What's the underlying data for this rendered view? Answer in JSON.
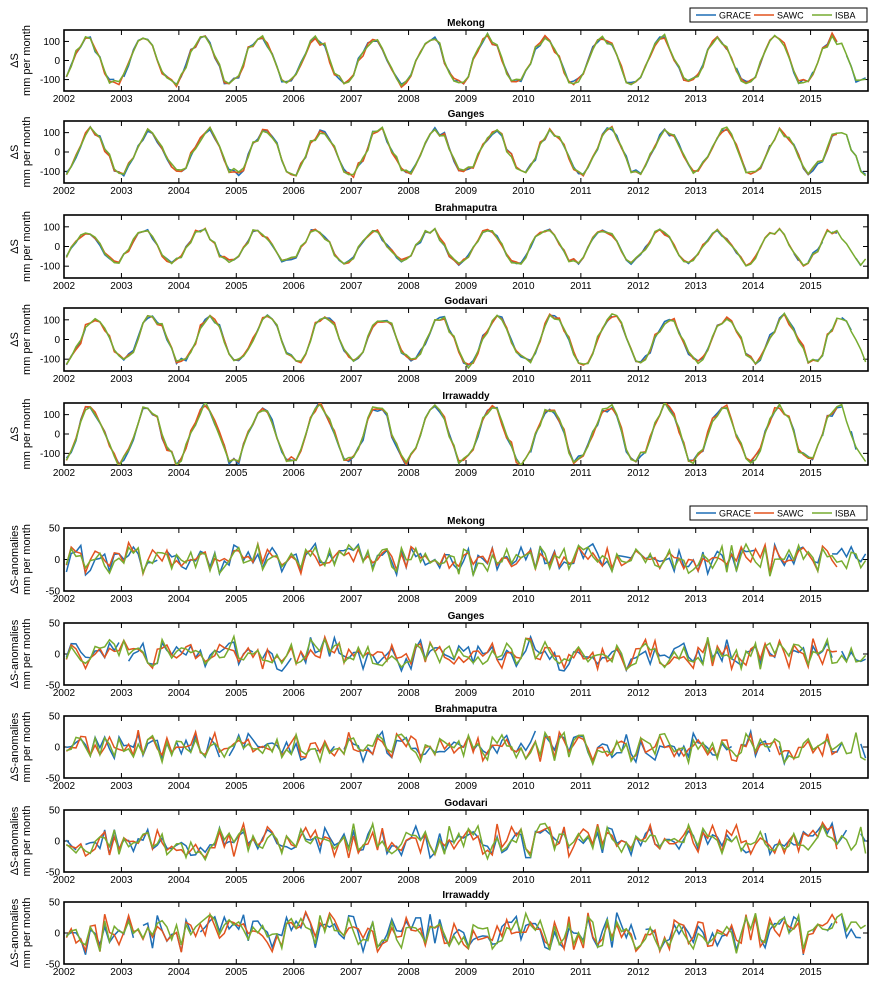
{
  "chart_data": [
    {
      "type": "line",
      "title": "Mekong",
      "ylabel": "ΔS",
      "ylabel2": "mm per month",
      "ylim": [
        -160,
        160
      ],
      "yticks": [
        -100,
        0,
        100
      ],
      "xlim": [
        2002,
        2016
      ],
      "xticks": [
        2002,
        2003,
        2004,
        2005,
        2006,
        2007,
        2008,
        2009,
        2010,
        2011,
        2012,
        2013,
        2014,
        2015
      ],
      "amp": 120,
      "phase": 0.35,
      "seed": 11,
      "legend": [
        "GRACE",
        "SAWC",
        "ISBA"
      ]
    },
    {
      "type": "line",
      "title": "Ganges",
      "ylabel": "ΔS",
      "ylabel2": "mm per month",
      "ylim": [
        -160,
        160
      ],
      "yticks": [
        -100,
        0,
        100
      ],
      "xlim": [
        2002,
        2016
      ],
      "xticks": [
        2002,
        2003,
        2004,
        2005,
        2006,
        2007,
        2008,
        2009,
        2010,
        2011,
        2012,
        2013,
        2014,
        2015
      ],
      "amp": 110,
      "phase": 0.45,
      "seed": 23
    },
    {
      "type": "line",
      "title": "Brahmaputra",
      "ylabel": "ΔS",
      "ylabel2": "mm per month",
      "ylim": [
        -160,
        160
      ],
      "yticks": [
        -100,
        0,
        100
      ],
      "xlim": [
        2002,
        2016
      ],
      "xticks": [
        2002,
        2003,
        2004,
        2005,
        2006,
        2007,
        2008,
        2009,
        2010,
        2011,
        2012,
        2013,
        2014,
        2015
      ],
      "amp": 80,
      "phase": 0.35,
      "seed": 37
    },
    {
      "type": "line",
      "title": "Godavari",
      "ylabel": "ΔS",
      "ylabel2": "mm per month",
      "ylim": [
        -160,
        160
      ],
      "yticks": [
        -100,
        0,
        100
      ],
      "xlim": [
        2002,
        2016
      ],
      "xticks": [
        2002,
        2003,
        2004,
        2005,
        2006,
        2007,
        2008,
        2009,
        2010,
        2011,
        2012,
        2013,
        2014,
        2015
      ],
      "amp": 115,
      "phase": 0.5,
      "seed": 41
    },
    {
      "type": "line",
      "title": "Irrawaddy",
      "ylabel": "ΔS",
      "ylabel2": "mm per month",
      "ylim": [
        -160,
        160
      ],
      "yticks": [
        -100,
        0,
        100
      ],
      "xlim": [
        2002,
        2016
      ],
      "xticks": [
        2002,
        2003,
        2004,
        2005,
        2006,
        2007,
        2008,
        2009,
        2010,
        2011,
        2012,
        2013,
        2014,
        2015
      ],
      "amp": 140,
      "phase": 0.42,
      "seed": 53
    },
    {
      "type": "line",
      "title": "Mekong",
      "ylabel": "ΔS-anomalies",
      "ylabel2": "mm per month",
      "ylim": [
        -50,
        50
      ],
      "yticks": [
        -50,
        0,
        50
      ],
      "xlim": [
        2002,
        2016
      ],
      "xticks": [
        2002,
        2003,
        2004,
        2005,
        2006,
        2007,
        2008,
        2009,
        2010,
        2011,
        2012,
        2013,
        2014,
        2015
      ],
      "amp": 22,
      "seed": 61,
      "legend": [
        "GRACE",
        "SAWC",
        "ISBA"
      ]
    },
    {
      "type": "line",
      "title": "Ganges",
      "ylabel": "ΔS-anomalies",
      "ylabel2": "mm per month",
      "ylim": [
        -50,
        50
      ],
      "yticks": [
        -50,
        0,
        50
      ],
      "xlim": [
        2002,
        2016
      ],
      "xticks": [
        2002,
        2003,
        2004,
        2005,
        2006,
        2007,
        2008,
        2009,
        2010,
        2011,
        2012,
        2013,
        2014,
        2015
      ],
      "amp": 24,
      "seed": 73
    },
    {
      "type": "line",
      "title": "Brahmaputra",
      "ylabel": "ΔS-anomalies",
      "ylabel2": "mm per month",
      "ylim": [
        -50,
        50
      ],
      "yticks": [
        -50,
        0,
        50
      ],
      "xlim": [
        2002,
        2016
      ],
      "xticks": [
        2002,
        2003,
        2004,
        2005,
        2006,
        2007,
        2008,
        2009,
        2010,
        2011,
        2012,
        2013,
        2014,
        2015
      ],
      "amp": 22,
      "seed": 89
    },
    {
      "type": "line",
      "title": "Godavari",
      "ylabel": "ΔS-anomalies",
      "ylabel2": "mm per month",
      "ylim": [
        -50,
        50
      ],
      "yticks": [
        -50,
        0,
        50
      ],
      "xlim": [
        2002,
        2016
      ],
      "xticks": [
        2002,
        2003,
        2004,
        2005,
        2006,
        2007,
        2008,
        2009,
        2010,
        2011,
        2012,
        2013,
        2014,
        2015
      ],
      "amp": 24,
      "seed": 97
    },
    {
      "type": "line",
      "title": "Irrawaddy",
      "ylabel": "ΔS-anomalies",
      "ylabel2": "mm per month",
      "ylim": [
        -50,
        50
      ],
      "yticks": [
        -50,
        0,
        50
      ],
      "xlim": [
        2002,
        2016
      ],
      "xticks": [
        2002,
        2003,
        2004,
        2005,
        2006,
        2007,
        2008,
        2009,
        2010,
        2011,
        2012,
        2013,
        2014,
        2015
      ],
      "amp": 28,
      "seed": 103
    }
  ],
  "series_colors": {
    "GRACE": "#1f6fb5",
    "SAWC": "#e2531f",
    "ISBA": "#77ac30"
  }
}
